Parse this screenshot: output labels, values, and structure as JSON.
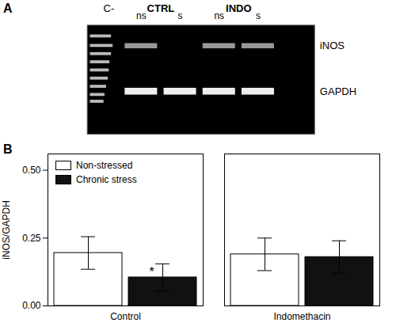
{
  "chart_data": [
    {
      "type": "gel",
      "title": "A",
      "categories": [
        "ns",
        "s",
        "ns",
        "s"
      ],
      "annotations": [
        "C-",
        "CTRL",
        "INDO",
        "iNOS",
        "GAPDH"
      ]
    },
    {
      "type": "bar",
      "title": "B",
      "categories": [
        "Control",
        "Indomethacin"
      ],
      "series": [
        {
          "name": "Non-stressed",
          "color": "#ffffff",
          "values": [
            0.195,
            0.19
          ],
          "errors": [
            0.06,
            0.06
          ]
        },
        {
          "name": "Chronic stress",
          "color": "#111111",
          "values": [
            0.105,
            0.18
          ],
          "errors": [
            0.05,
            0.06
          ]
        }
      ],
      "ylabel": "iNOS/GAPDH",
      "ylim": [
        0.0,
        0.56
      ],
      "yticks": [
        {
          "value": 0.0,
          "label": "0.00"
        },
        {
          "value": 0.25,
          "label": "0.25"
        },
        {
          "value": 0.5,
          "label": "0.50"
        }
      ],
      "legend": "upper left",
      "annotations": [
        {
          "text": "*",
          "category": "Control",
          "series": "Chronic stress"
        }
      ]
    }
  ]
}
